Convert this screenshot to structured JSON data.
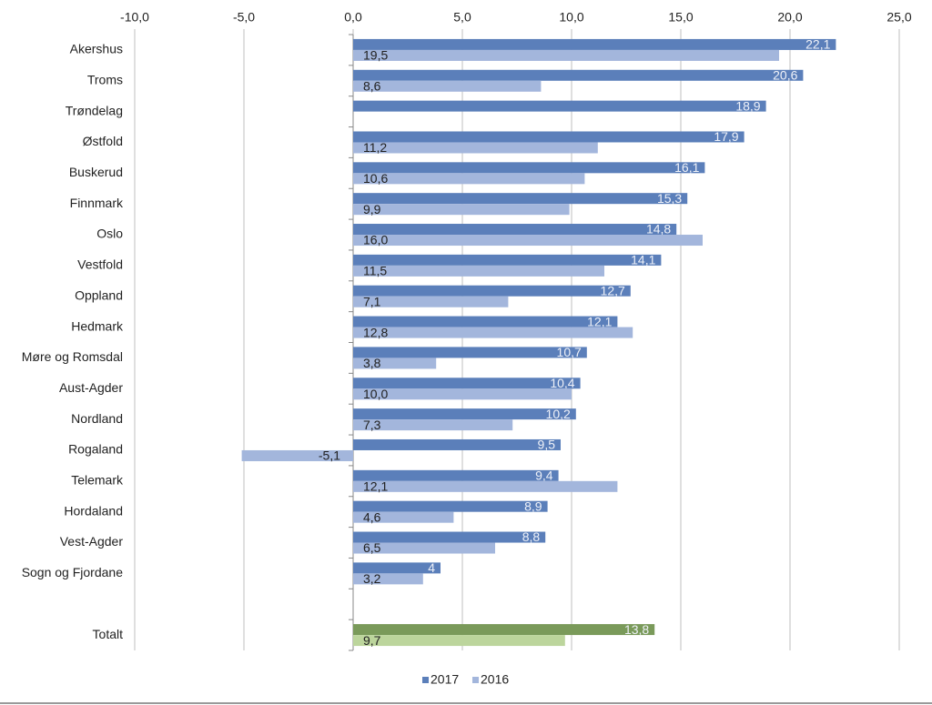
{
  "chart_data": {
    "type": "hbar",
    "categories": [
      "Akershus",
      "Troms",
      "Trøndelag",
      "Østfold",
      "Buskerud",
      "Finnmark",
      "Oslo",
      "Vestfold",
      "Oppland",
      "Hedmark",
      "Møre og Romsdal",
      "Aust-Agder",
      "Nordland",
      "Rogaland",
      "Telemark",
      "Hordaland",
      "Vest-Agder",
      "Sogn og Fjordane",
      null,
      "Totalt"
    ],
    "series": [
      {
        "name": "2017",
        "color": "#5b7fba",
        "colors": [
          "#5b7fba",
          "#5b7fba",
          "#5b7fba",
          "#5b7fba",
          "#5b7fba",
          "#5b7fba",
          "#5b7fba",
          "#5b7fba",
          "#5b7fba",
          "#5b7fba",
          "#5b7fba",
          "#5b7fba",
          "#5b7fba",
          "#5b7fba",
          "#5b7fba",
          "#5b7fba",
          "#5b7fba",
          "#5b7fba",
          "#5b7fba",
          "#7a9a5a"
        ],
        "values": [
          22.1,
          20.6,
          18.9,
          17.9,
          16.1,
          15.3,
          14.8,
          14.1,
          12.7,
          12.1,
          10.7,
          10.4,
          10.2,
          9.5,
          9.4,
          8.9,
          8.8,
          4,
          null,
          13.8
        ],
        "value_labels": [
          "22,1",
          "20,6",
          "18,9",
          "17,9",
          "16,1",
          "15,3",
          "14,8",
          "14,1",
          "12,7",
          "12,1",
          "10,7",
          "10,4",
          "10,2",
          "9,5",
          "9,4",
          "8,9",
          "8,8",
          "4",
          null,
          "13,8"
        ]
      },
      {
        "name": "2016",
        "color": "#a3b6dc",
        "colors": [
          "#a3b6dc",
          "#a3b6dc",
          "#a3b6dc",
          "#a3b6dc",
          "#a3b6dc",
          "#a3b6dc",
          "#a3b6dc",
          "#a3b6dc",
          "#a3b6dc",
          "#a3b6dc",
          "#a3b6dc",
          "#a3b6dc",
          "#a3b6dc",
          "#a3b6dc",
          "#a3b6dc",
          "#a3b6dc",
          "#a3b6dc",
          "#a3b6dc",
          "#a3b6dc",
          "#bcd59c"
        ],
        "values": [
          19.5,
          8.6,
          null,
          11.2,
          10.6,
          9.9,
          16.0,
          11.5,
          7.1,
          12.8,
          3.8,
          10.0,
          7.3,
          -5.1,
          12.1,
          4.6,
          6.5,
          3.2,
          null,
          9.7
        ],
        "value_labels": [
          "19,5",
          "8,6",
          null,
          "11,2",
          "10,6",
          "9,9",
          "16,0",
          "11,5",
          "7,1",
          "12,8",
          "3,8",
          "10,0",
          "7,3",
          "-5,1",
          "12,1",
          "4,6",
          "6,5",
          "3,2",
          null,
          "9,7"
        ]
      }
    ],
    "xlim": [
      -10,
      25
    ],
    "xticks": [
      {
        "value": -10,
        "label": "-10,0"
      },
      {
        "value": -5,
        "label": "-5,0"
      },
      {
        "value": 0,
        "label": "0,0"
      },
      {
        "value": 5,
        "label": "5,0"
      },
      {
        "value": 10,
        "label": "10,0"
      },
      {
        "value": 15,
        "label": "15,0"
      },
      {
        "value": 20,
        "label": "20,0"
      },
      {
        "value": 25,
        "label": "25,0"
      }
    ],
    "grid": true,
    "legend": "bottom"
  }
}
